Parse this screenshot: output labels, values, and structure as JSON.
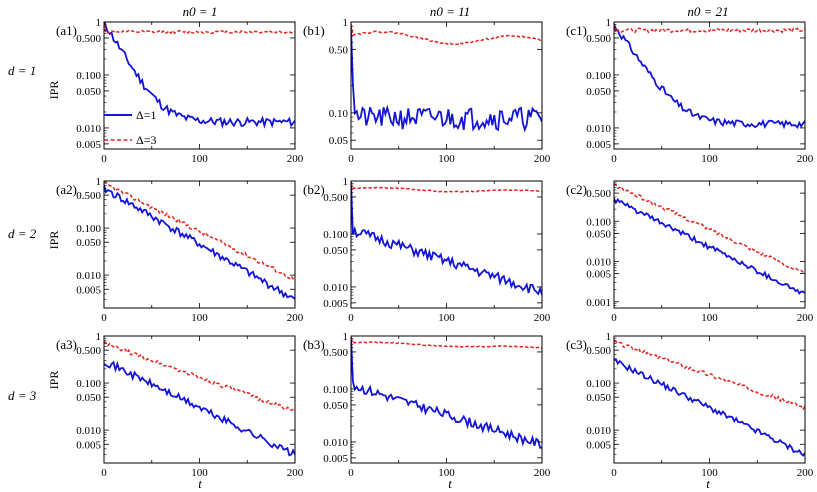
{
  "column_headers": [
    "n0 = 1",
    "n0 = 11",
    "n0 = 21"
  ],
  "row_headers": [
    "d = 1",
    "d = 2",
    "d = 3"
  ],
  "xlabel": "t",
  "ylabel": "IPR",
  "legend": {
    "entries": [
      "Δ=1",
      "Δ=3"
    ],
    "placement": "inside panel (a1), lower-left"
  },
  "colors": {
    "delta1": "#1414d8",
    "delta3": "#e8231f",
    "frame": "#000000"
  },
  "chart_data": [
    {
      "id": "a1",
      "label": "(a1)",
      "type": "line",
      "xlim": [
        0,
        200
      ],
      "ylim": [
        0.004,
        1.0
      ],
      "scale_y": "log",
      "yticks": [
        {
          "v": 1,
          "t": "1"
        },
        {
          "v": 0.5,
          "t": "0.500"
        },
        {
          "v": 0.1,
          "t": "0.100"
        },
        {
          "v": 0.05,
          "t": "0.050"
        },
        {
          "v": 0.01,
          "t": "0.010"
        },
        {
          "v": 0.005,
          "t": "0.005"
        }
      ],
      "xticks": [
        0,
        100,
        200
      ],
      "series": [
        {
          "name": "Δ=1",
          "style": "solid",
          "decay": {
            "type": "sat",
            "a": 1,
            "b": 0.013,
            "k": 0.07,
            "nz": 0.18,
            "seed": 11
          }
        },
        {
          "name": "Δ=3",
          "style": "dashed",
          "decay": {
            "type": "flat",
            "a": 0.65,
            "nz": 0.06,
            "seed": 12,
            "spike": 1
          }
        }
      ]
    },
    {
      "id": "b1",
      "label": "(b1)",
      "type": "line",
      "xlim": [
        0,
        200
      ],
      "ylim": [
        0.04,
        1.0
      ],
      "scale_y": "log",
      "yticks": [
        {
          "v": 1,
          "t": "1"
        },
        {
          "v": 0.5,
          "t": "0.50"
        },
        {
          "v": 0.1,
          "t": "0.10"
        },
        {
          "v": 0.05,
          "t": "0.05"
        }
      ],
      "xticks": [
        0,
        100,
        200
      ],
      "series": [
        {
          "name": "Δ=1",
          "style": "solid",
          "decay": {
            "type": "sat",
            "a": 1,
            "b": 0.09,
            "k": 0.9,
            "nz": 0.28,
            "seed": 21
          }
        },
        {
          "name": "Δ=3",
          "style": "dashed",
          "decay": {
            "type": "wave",
            "a": 0.72,
            "amp": 0.08,
            "end": 0.6,
            "nz": 0.02,
            "seed": 22,
            "spike": 1
          }
        }
      ]
    },
    {
      "id": "c1",
      "label": "(c1)",
      "type": "line",
      "xlim": [
        0,
        200
      ],
      "ylim": [
        0.004,
        1.0
      ],
      "scale_y": "log",
      "yticks": [
        {
          "v": 1,
          "t": "1"
        },
        {
          "v": 0.5,
          "t": "0.500"
        },
        {
          "v": 0.1,
          "t": "0.100"
        },
        {
          "v": 0.05,
          "t": "0.050"
        },
        {
          "v": 0.01,
          "t": "0.010"
        },
        {
          "v": 0.005,
          "t": "0.005"
        }
      ],
      "xticks": [
        0,
        100,
        200
      ],
      "series": [
        {
          "name": "Δ=1",
          "style": "solid",
          "decay": {
            "type": "sat",
            "a": 0.9,
            "b": 0.012,
            "k": 0.06,
            "nz": 0.15,
            "seed": 31
          }
        },
        {
          "name": "Δ=3",
          "style": "dashed",
          "decay": {
            "type": "flat",
            "a": 0.7,
            "nz": 0.09,
            "seed": 32,
            "spike": 1
          }
        }
      ]
    },
    {
      "id": "a2",
      "label": "(a2)",
      "type": "line",
      "xlim": [
        0,
        200
      ],
      "ylim": [
        0.002,
        1.0
      ],
      "scale_y": "log",
      "yticks": [
        {
          "v": 1,
          "t": "1"
        },
        {
          "v": 0.5,
          "t": "0.500"
        },
        {
          "v": 0.1,
          "t": "0.100"
        },
        {
          "v": 0.05,
          "t": "0.050"
        },
        {
          "v": 0.01,
          "t": "0.010"
        },
        {
          "v": 0.005,
          "t": "0.005"
        }
      ],
      "xticks": [
        0,
        100,
        200
      ],
      "series": [
        {
          "name": "Δ=1",
          "style": "solid",
          "decay": {
            "type": "exp",
            "a": 0.7,
            "end": 0.003,
            "nz": 0.18,
            "seed": 41
          }
        },
        {
          "name": "Δ=3",
          "style": "dashed",
          "decay": {
            "type": "exp",
            "a": 0.9,
            "end": 0.008,
            "nz": 0.1,
            "seed": 42
          }
        }
      ]
    },
    {
      "id": "b2",
      "label": "(b2)",
      "type": "line",
      "xlim": [
        0,
        200
      ],
      "ylim": [
        0.004,
        1.0
      ],
      "scale_y": "log",
      "yticks": [
        {
          "v": 1,
          "t": "1"
        },
        {
          "v": 0.5,
          "t": "0.500"
        },
        {
          "v": 0.1,
          "t": "0.100"
        },
        {
          "v": 0.05,
          "t": "0.050"
        },
        {
          "v": 0.01,
          "t": "0.010"
        },
        {
          "v": 0.005,
          "t": "0.005"
        }
      ],
      "xticks": [
        0,
        100,
        200
      ],
      "series": [
        {
          "name": "Δ=1",
          "style": "solid",
          "decay": {
            "type": "exp",
            "a": 0.12,
            "end": 0.008,
            "nz": 0.22,
            "seed": 51,
            "spike": 1
          }
        },
        {
          "name": "Δ=3",
          "style": "dashed",
          "decay": {
            "type": "wave",
            "a": 0.72,
            "amp": 0.04,
            "end": 0.62,
            "nz": 0.02,
            "seed": 52,
            "spike": 1
          }
        }
      ]
    },
    {
      "id": "c2",
      "label": "(c2)",
      "type": "line",
      "xlim": [
        0,
        200
      ],
      "ylim": [
        0.0007,
        1.0
      ],
      "scale_y": "log",
      "yticks": [
        {
          "v": 0.5,
          "t": "0.500"
        },
        {
          "v": 0.1,
          "t": "0.100"
        },
        {
          "v": 0.05,
          "t": "0.050"
        },
        {
          "v": 0.01,
          "t": "0.010"
        },
        {
          "v": 0.005,
          "t": "0.005"
        },
        {
          "v": 0.001,
          "t": "0.001"
        }
      ],
      "xticks": [
        0,
        100,
        200
      ],
      "series": [
        {
          "name": "Δ=1",
          "style": "solid",
          "decay": {
            "type": "exp",
            "a": 0.35,
            "end": 0.0015,
            "nz": 0.15,
            "seed": 61
          }
        },
        {
          "name": "Δ=3",
          "style": "dashed",
          "decay": {
            "type": "exp",
            "a": 0.8,
            "end": 0.005,
            "nz": 0.1,
            "seed": 62
          }
        }
      ]
    },
    {
      "id": "a3",
      "label": "(a3)",
      "type": "line",
      "xlim": [
        0,
        200
      ],
      "ylim": [
        0.002,
        1.0
      ],
      "scale_y": "log",
      "yticks": [
        {
          "v": 1,
          "t": "1"
        },
        {
          "v": 0.5,
          "t": "0.500"
        },
        {
          "v": 0.1,
          "t": "0.100"
        },
        {
          "v": 0.05,
          "t": "0.050"
        },
        {
          "v": 0.01,
          "t": "0.010"
        },
        {
          "v": 0.005,
          "t": "0.005"
        }
      ],
      "xticks": [
        0,
        100,
        200
      ],
      "series": [
        {
          "name": "Δ=1",
          "style": "solid",
          "decay": {
            "type": "exp",
            "a": 0.3,
            "end": 0.003,
            "nz": 0.18,
            "seed": 71
          }
        },
        {
          "name": "Δ=3",
          "style": "dashed",
          "decay": {
            "type": "exp",
            "a": 0.7,
            "end": 0.025,
            "nz": 0.1,
            "seed": 72
          }
        }
      ]
    },
    {
      "id": "b3",
      "label": "(b3)",
      "type": "line",
      "xlim": [
        0,
        200
      ],
      "ylim": [
        0.004,
        1.0
      ],
      "scale_y": "log",
      "yticks": [
        {
          "v": 1,
          "t": "1"
        },
        {
          "v": 0.5,
          "t": "0.500"
        },
        {
          "v": 0.1,
          "t": "0.100"
        },
        {
          "v": 0.05,
          "t": "0.050"
        },
        {
          "v": 0.01,
          "t": "0.010"
        },
        {
          "v": 0.005,
          "t": "0.005"
        }
      ],
      "xticks": [
        0,
        100,
        200
      ],
      "series": [
        {
          "name": "Δ=1",
          "style": "solid",
          "decay": {
            "type": "exp",
            "a": 0.12,
            "end": 0.009,
            "nz": 0.2,
            "seed": 81,
            "spike": 1
          }
        },
        {
          "name": "Δ=3",
          "style": "dashed",
          "decay": {
            "type": "wave",
            "a": 0.75,
            "amp": 0.03,
            "end": 0.58,
            "nz": 0.02,
            "seed": 82,
            "spike": 1
          }
        }
      ]
    },
    {
      "id": "c3",
      "label": "(c3)",
      "type": "line",
      "xlim": [
        0,
        200
      ],
      "ylim": [
        0.002,
        1.0
      ],
      "scale_y": "log",
      "yticks": [
        {
          "v": 1,
          "t": "1"
        },
        {
          "v": 0.5,
          "t": "0.500"
        },
        {
          "v": 0.1,
          "t": "0.100"
        },
        {
          "v": 0.05,
          "t": "0.050"
        },
        {
          "v": 0.01,
          "t": "0.010"
        },
        {
          "v": 0.005,
          "t": "0.005"
        }
      ],
      "xticks": [
        0,
        100,
        200
      ],
      "series": [
        {
          "name": "Δ=1",
          "style": "solid",
          "decay": {
            "type": "exp",
            "a": 0.3,
            "end": 0.003,
            "nz": 0.14,
            "seed": 91
          }
        },
        {
          "name": "Δ=3",
          "style": "dashed",
          "decay": {
            "type": "exp",
            "a": 0.75,
            "end": 0.03,
            "nz": 0.1,
            "seed": 92
          }
        }
      ]
    }
  ]
}
